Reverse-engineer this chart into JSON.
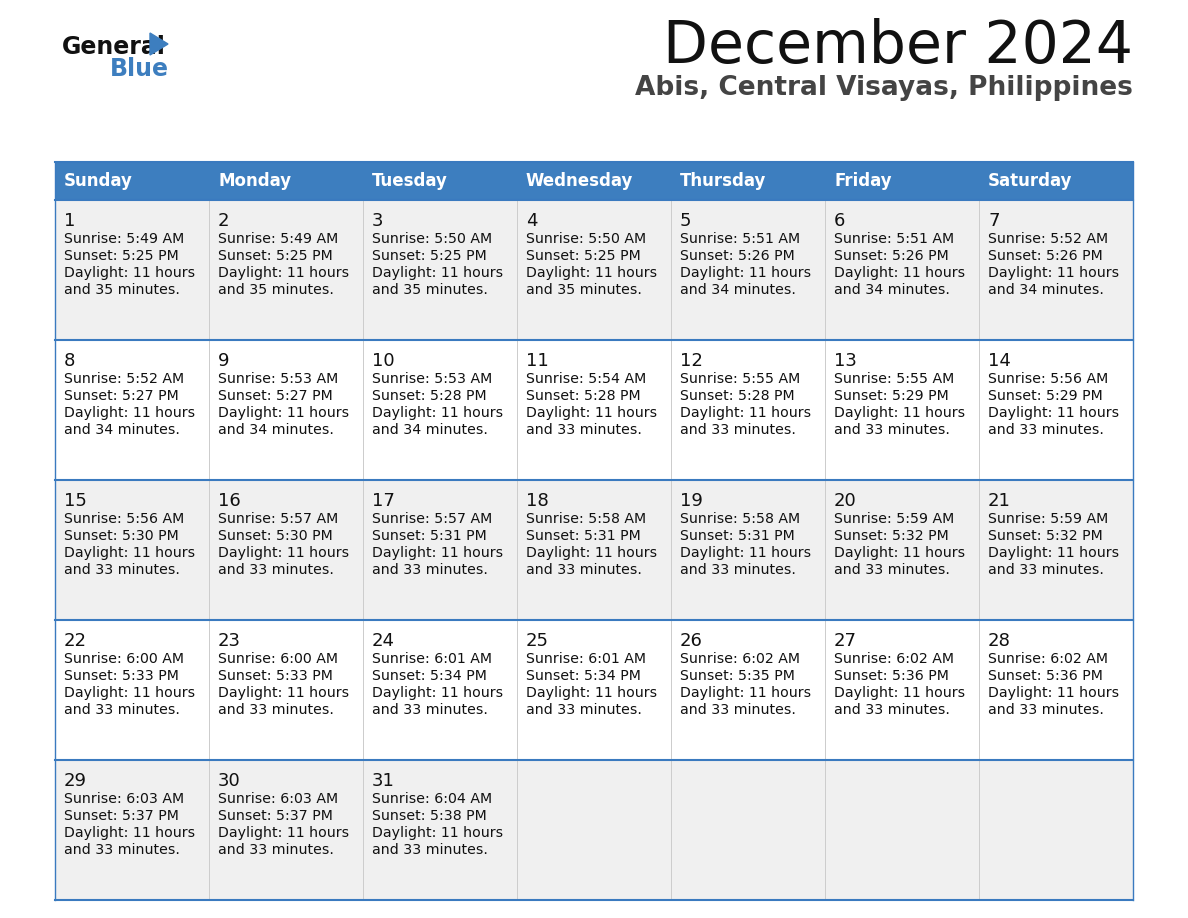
{
  "title": "December 2024",
  "subtitle": "Abis, Central Visayas, Philippines",
  "header_color": "#3d7ebf",
  "header_text_color": "#ffffff",
  "cell_bg_even": "#f0f0f0",
  "cell_bg_odd": "#ffffff",
  "border_color": "#3a7abf",
  "text_color": "#222222",
  "days_of_week": [
    "Sunday",
    "Monday",
    "Tuesday",
    "Wednesday",
    "Thursday",
    "Friday",
    "Saturday"
  ],
  "weeks": [
    [
      {
        "day": 1,
        "sunrise": "5:49 AM",
        "sunset": "5:25 PM",
        "daylight_line1": "11 hours",
        "daylight_line2": "and 35 minutes."
      },
      {
        "day": 2,
        "sunrise": "5:49 AM",
        "sunset": "5:25 PM",
        "daylight_line1": "11 hours",
        "daylight_line2": "and 35 minutes."
      },
      {
        "day": 3,
        "sunrise": "5:50 AM",
        "sunset": "5:25 PM",
        "daylight_line1": "11 hours",
        "daylight_line2": "and 35 minutes."
      },
      {
        "day": 4,
        "sunrise": "5:50 AM",
        "sunset": "5:25 PM",
        "daylight_line1": "11 hours",
        "daylight_line2": "and 35 minutes."
      },
      {
        "day": 5,
        "sunrise": "5:51 AM",
        "sunset": "5:26 PM",
        "daylight_line1": "11 hours",
        "daylight_line2": "and 34 minutes."
      },
      {
        "day": 6,
        "sunrise": "5:51 AM",
        "sunset": "5:26 PM",
        "daylight_line1": "11 hours",
        "daylight_line2": "and 34 minutes."
      },
      {
        "day": 7,
        "sunrise": "5:52 AM",
        "sunset": "5:26 PM",
        "daylight_line1": "11 hours",
        "daylight_line2": "and 34 minutes."
      }
    ],
    [
      {
        "day": 8,
        "sunrise": "5:52 AM",
        "sunset": "5:27 PM",
        "daylight_line1": "11 hours",
        "daylight_line2": "and 34 minutes."
      },
      {
        "day": 9,
        "sunrise": "5:53 AM",
        "sunset": "5:27 PM",
        "daylight_line1": "11 hours",
        "daylight_line2": "and 34 minutes."
      },
      {
        "day": 10,
        "sunrise": "5:53 AM",
        "sunset": "5:28 PM",
        "daylight_line1": "11 hours",
        "daylight_line2": "and 34 minutes."
      },
      {
        "day": 11,
        "sunrise": "5:54 AM",
        "sunset": "5:28 PM",
        "daylight_line1": "11 hours",
        "daylight_line2": "and 33 minutes."
      },
      {
        "day": 12,
        "sunrise": "5:55 AM",
        "sunset": "5:28 PM",
        "daylight_line1": "11 hours",
        "daylight_line2": "and 33 minutes."
      },
      {
        "day": 13,
        "sunrise": "5:55 AM",
        "sunset": "5:29 PM",
        "daylight_line1": "11 hours",
        "daylight_line2": "and 33 minutes."
      },
      {
        "day": 14,
        "sunrise": "5:56 AM",
        "sunset": "5:29 PM",
        "daylight_line1": "11 hours",
        "daylight_line2": "and 33 minutes."
      }
    ],
    [
      {
        "day": 15,
        "sunrise": "5:56 AM",
        "sunset": "5:30 PM",
        "daylight_line1": "11 hours",
        "daylight_line2": "and 33 minutes."
      },
      {
        "day": 16,
        "sunrise": "5:57 AM",
        "sunset": "5:30 PM",
        "daylight_line1": "11 hours",
        "daylight_line2": "and 33 minutes."
      },
      {
        "day": 17,
        "sunrise": "5:57 AM",
        "sunset": "5:31 PM",
        "daylight_line1": "11 hours",
        "daylight_line2": "and 33 minutes."
      },
      {
        "day": 18,
        "sunrise": "5:58 AM",
        "sunset": "5:31 PM",
        "daylight_line1": "11 hours",
        "daylight_line2": "and 33 minutes."
      },
      {
        "day": 19,
        "sunrise": "5:58 AM",
        "sunset": "5:31 PM",
        "daylight_line1": "11 hours",
        "daylight_line2": "and 33 minutes."
      },
      {
        "day": 20,
        "sunrise": "5:59 AM",
        "sunset": "5:32 PM",
        "daylight_line1": "11 hours",
        "daylight_line2": "and 33 minutes."
      },
      {
        "day": 21,
        "sunrise": "5:59 AM",
        "sunset": "5:32 PM",
        "daylight_line1": "11 hours",
        "daylight_line2": "and 33 minutes."
      }
    ],
    [
      {
        "day": 22,
        "sunrise": "6:00 AM",
        "sunset": "5:33 PM",
        "daylight_line1": "11 hours",
        "daylight_line2": "and 33 minutes."
      },
      {
        "day": 23,
        "sunrise": "6:00 AM",
        "sunset": "5:33 PM",
        "daylight_line1": "11 hours",
        "daylight_line2": "and 33 minutes."
      },
      {
        "day": 24,
        "sunrise": "6:01 AM",
        "sunset": "5:34 PM",
        "daylight_line1": "11 hours",
        "daylight_line2": "and 33 minutes."
      },
      {
        "day": 25,
        "sunrise": "6:01 AM",
        "sunset": "5:34 PM",
        "daylight_line1": "11 hours",
        "daylight_line2": "and 33 minutes."
      },
      {
        "day": 26,
        "sunrise": "6:02 AM",
        "sunset": "5:35 PM",
        "daylight_line1": "11 hours",
        "daylight_line2": "and 33 minutes."
      },
      {
        "day": 27,
        "sunrise": "6:02 AM",
        "sunset": "5:36 PM",
        "daylight_line1": "11 hours",
        "daylight_line2": "and 33 minutes."
      },
      {
        "day": 28,
        "sunrise": "6:02 AM",
        "sunset": "5:36 PM",
        "daylight_line1": "11 hours",
        "daylight_line2": "and 33 minutes."
      }
    ],
    [
      {
        "day": 29,
        "sunrise": "6:03 AM",
        "sunset": "5:37 PM",
        "daylight_line1": "11 hours",
        "daylight_line2": "and 33 minutes."
      },
      {
        "day": 30,
        "sunrise": "6:03 AM",
        "sunset": "5:37 PM",
        "daylight_line1": "11 hours",
        "daylight_line2": "and 33 minutes."
      },
      {
        "day": 31,
        "sunrise": "6:04 AM",
        "sunset": "5:38 PM",
        "daylight_line1": "11 hours",
        "daylight_line2": "and 33 minutes."
      },
      null,
      null,
      null,
      null
    ]
  ]
}
